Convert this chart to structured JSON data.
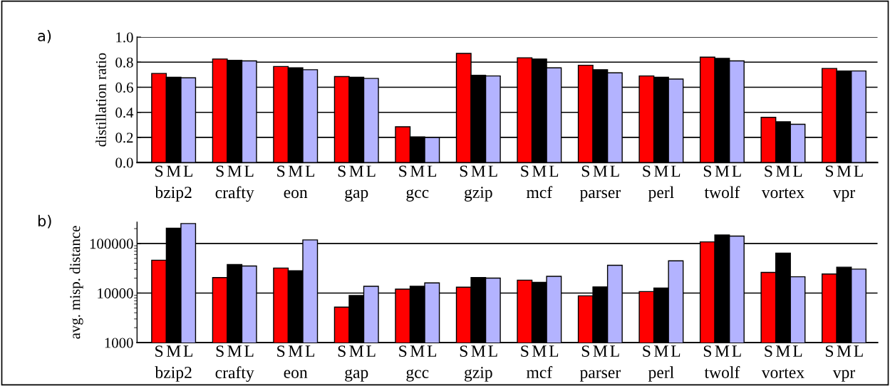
{
  "chart_data": [
    {
      "type": "bar",
      "title": "a)",
      "ylabel": "distillation ratio",
      "categories": [
        "bzip2",
        "crafty",
        "eon",
        "gap",
        "gcc",
        "gzip",
        "mcf",
        "parser",
        "perl",
        "twolf",
        "vortex",
        "vpr"
      ],
      "series": [
        {
          "name": "S",
          "color": "#ff0000",
          "values": [
            0.71,
            0.825,
            0.765,
            0.685,
            0.285,
            0.87,
            0.835,
            0.775,
            0.69,
            0.84,
            0.36,
            0.75
          ]
        },
        {
          "name": "M",
          "color": "#000000",
          "values": [
            0.68,
            0.815,
            0.755,
            0.68,
            0.205,
            0.695,
            0.825,
            0.74,
            0.68,
            0.83,
            0.325,
            0.73
          ]
        },
        {
          "name": "L",
          "color": "#b3b3ff",
          "values": [
            0.675,
            0.81,
            0.74,
            0.67,
            0.2,
            0.69,
            0.755,
            0.715,
            0.665,
            0.81,
            0.305,
            0.73
          ]
        }
      ],
      "ylim": [
        0,
        1.0
      ],
      "yticks": [
        {
          "value": 0,
          "label": "0.0"
        },
        {
          "value": 0.2,
          "label": "0.2"
        },
        {
          "value": 0.4,
          "label": "0.4"
        },
        {
          "value": 0.6,
          "label": "0.6"
        },
        {
          "value": 0.8,
          "label": "0.8"
        },
        {
          "value": 1.0,
          "label": "1.0"
        }
      ],
      "grid": "y",
      "legend": false
    },
    {
      "type": "bar",
      "title": "b)",
      "ylabel": "avg. misp. distance",
      "log": "y",
      "categories": [
        "bzip2",
        "crafty",
        "eon",
        "gap",
        "gcc",
        "gzip",
        "mcf",
        "parser",
        "perl",
        "twolf",
        "vortex",
        "vpr"
      ],
      "series": [
        {
          "name": "S",
          "color": "#ff0000",
          "values": [
            46000,
            20500,
            32000,
            5200,
            12000,
            13100,
            18200,
            8800,
            10700,
            108000,
            26100,
            24200
          ]
        },
        {
          "name": "M",
          "color": "#000000",
          "values": [
            203000,
            37500,
            28100,
            8900,
            13700,
            20500,
            16500,
            13300,
            12600,
            149000,
            64000,
            33300
          ]
        },
        {
          "name": "L",
          "color": "#b3b3ff",
          "values": [
            253000,
            35100,
            118000,
            13700,
            16000,
            20000,
            21800,
            36400,
            44700,
            141000,
            21300,
            30400
          ]
        }
      ],
      "ylim": [
        1000,
        270000
      ],
      "yticks": [
        1000,
        10000,
        100000
      ],
      "grid": "y",
      "legend": false
    }
  ]
}
